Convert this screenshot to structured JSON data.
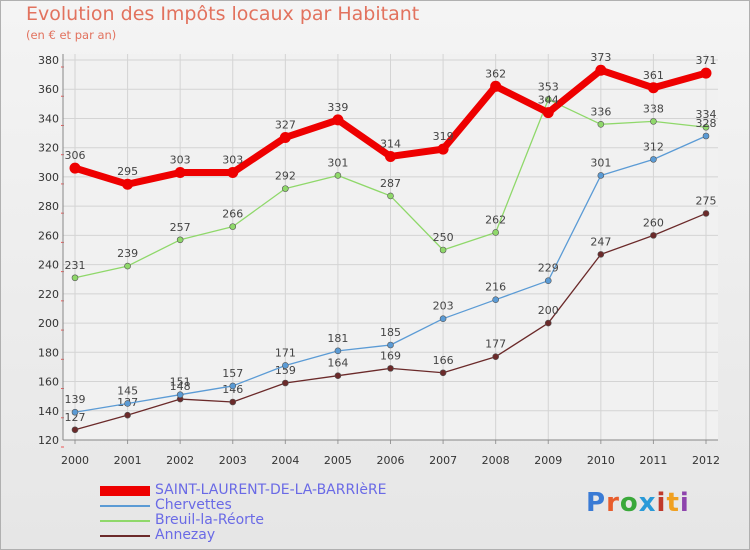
{
  "title": "Evolution des Impôts locaux par Habitant",
  "subtitle": "(en € et par an)",
  "brand": "Proxiti",
  "chart_data": {
    "type": "line",
    "categories": [
      "2000",
      "2001",
      "2002",
      "2003",
      "2004",
      "2005",
      "2006",
      "2007",
      "2008",
      "2009",
      "2010",
      "2011",
      "2012"
    ],
    "ylim": [
      120,
      380
    ],
    "yticks": [
      120,
      140,
      160,
      180,
      200,
      220,
      240,
      260,
      280,
      300,
      320,
      340,
      360,
      380
    ],
    "grid": true,
    "legend": "bottom-left",
    "series": [
      {
        "name": "SAINT-LAURENT-DE-LA-BARRIèRE",
        "color": "#ee0000",
        "values": [
          306,
          295,
          303,
          303,
          327,
          339,
          314,
          319,
          362,
          344,
          373,
          361,
          371
        ]
      },
      {
        "name": "Chervettes",
        "color": "#5b9bd5",
        "values": [
          139,
          145,
          151,
          157,
          171,
          181,
          185,
          203,
          216,
          229,
          301,
          312,
          328
        ]
      },
      {
        "name": "Breuil-la-Réorte",
        "color": "#8fd86a",
        "values": [
          231,
          239,
          257,
          266,
          292,
          301,
          287,
          250,
          262,
          353,
          336,
          338,
          334
        ]
      },
      {
        "name": "Annezay",
        "color": "#6b2a2a",
        "values": [
          127,
          137,
          148,
          146,
          159,
          164,
          169,
          166,
          177,
          200,
          247,
          260,
          275
        ]
      }
    ]
  }
}
